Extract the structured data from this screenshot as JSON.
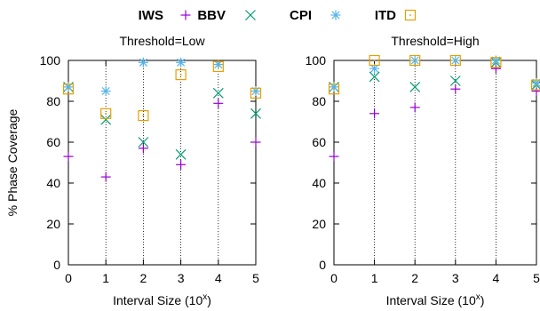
{
  "legend": {
    "items": [
      {
        "label": "IWS",
        "marker": "plus",
        "color": "#9400d3"
      },
      {
        "label": "BBV",
        "marker": "cross",
        "color": "#009e73"
      },
      {
        "label": "CPI",
        "marker": "star",
        "color": "#56b4e9"
      },
      {
        "label": "ITD",
        "marker": "dotted-square",
        "color": "#e69f00"
      }
    ]
  },
  "chart_data": [
    {
      "type": "scatter",
      "title": "Threshold=Low",
      "xlabel": "Interval Size (10^x)",
      "ylabel": "% Phase Coverage",
      "xlim": [
        0,
        5
      ],
      "ylim": [
        0,
        100
      ],
      "x_ticks": [
        0,
        1,
        2,
        3,
        4,
        5
      ],
      "y_ticks": [
        0,
        20,
        40,
        60,
        80,
        100
      ],
      "vertical_dotted_gridlines": [
        1,
        2,
        3,
        4
      ],
      "x": [
        0,
        1,
        2,
        3,
        4,
        5
      ],
      "series": [
        {
          "name": "IWS",
          "marker": "plus",
          "color": "#9400d3",
          "values": [
            53,
            43,
            57,
            49,
            79,
            60
          ]
        },
        {
          "name": "BBV",
          "marker": "cross",
          "color": "#009e73",
          "values": [
            87,
            71,
            60,
            54,
            84,
            74
          ]
        },
        {
          "name": "CPI",
          "marker": "star",
          "color": "#56b4e9",
          "values": [
            87,
            85,
            99,
            99,
            98,
            85
          ]
        },
        {
          "name": "ITD",
          "marker": "dotted-square",
          "color": "#e69f00",
          "values": [
            86,
            74,
            73,
            93,
            97,
            84
          ]
        }
      ]
    },
    {
      "type": "scatter",
      "title": "Threshold=High",
      "xlabel": "Interval Size (10^x)",
      "ylabel": "",
      "xlim": [
        0,
        5
      ],
      "ylim": [
        0,
        100
      ],
      "x_ticks": [
        0,
        1,
        2,
        3,
        4,
        5
      ],
      "y_ticks": [
        0,
        20,
        40,
        60,
        80,
        100
      ],
      "vertical_dotted_gridlines": [
        1,
        2,
        3,
        4
      ],
      "x": [
        0,
        1,
        2,
        3,
        4,
        5
      ],
      "series": [
        {
          "name": "IWS",
          "marker": "plus",
          "color": "#9400d3",
          "values": [
            53,
            74,
            77,
            86,
            96,
            85
          ]
        },
        {
          "name": "BBV",
          "marker": "cross",
          "color": "#009e73",
          "values": [
            87,
            92,
            87,
            90,
            99,
            88
          ]
        },
        {
          "name": "CPI",
          "marker": "star",
          "color": "#56b4e9",
          "values": [
            87,
            96,
            100,
            100,
            100,
            89
          ]
        },
        {
          "name": "ITD",
          "marker": "dotted-square",
          "color": "#e69f00",
          "values": [
            86,
            100,
            100,
            100,
            99,
            88
          ]
        }
      ]
    }
  ]
}
